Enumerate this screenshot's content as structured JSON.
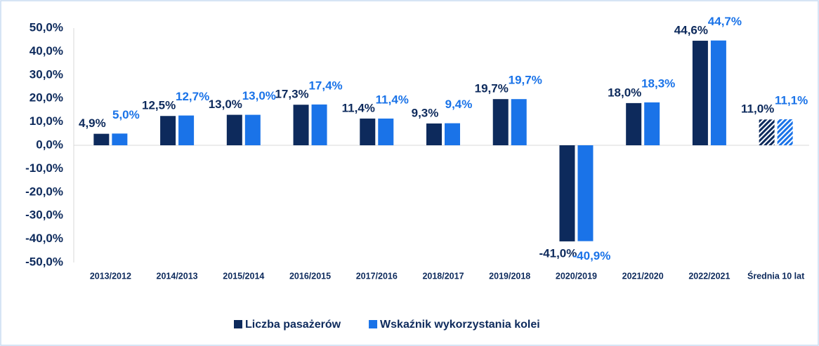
{
  "chart_data": {
    "type": "bar",
    "categories": [
      "2013/2012",
      "2014/2013",
      "2015/2014",
      "2016/2015",
      "2017/2016",
      "2018/2017",
      "2019/2018",
      "2020/2019",
      "2021/2020",
      "2022/2021",
      "Średnia 10 lat"
    ],
    "series": [
      {
        "name": "Liczba pasażerów",
        "color": "#0d2a5c",
        "values": [
          4.9,
          12.5,
          13.0,
          17.3,
          11.4,
          9.3,
          19.7,
          -41.0,
          18.0,
          44.6,
          11.0
        ],
        "value_labels": [
          "4,9%",
          "12,5%",
          "13,0%",
          "17,3%",
          "11,4%",
          "9,3%",
          "19,7%",
          "-41,0%",
          "18,0%",
          "44,6%",
          "11,0%"
        ]
      },
      {
        "name": "Wskaźnik wykorzystania kolei",
        "color": "#1a73e8",
        "values": [
          5.0,
          12.7,
          13.0,
          17.4,
          11.4,
          9.4,
          19.7,
          -40.9,
          18.3,
          44.7,
          11.1
        ],
        "value_labels": [
          "5,0%",
          "12,7%",
          "13,0%",
          "17,4%",
          "11,4%",
          "9,4%",
          "19,7%",
          "-40,9%",
          "18,3%",
          "44,7%",
          "11,1%"
        ]
      }
    ],
    "hatched": [
      false,
      false,
      false,
      false,
      false,
      false,
      false,
      false,
      false,
      false,
      true
    ],
    "ylim": [
      -50,
      50
    ],
    "yticks": [
      {
        "value": -50,
        "label": "-50,0%"
      },
      {
        "value": -40,
        "label": "-40,0%"
      },
      {
        "value": -30,
        "label": "-30,0%"
      },
      {
        "value": -20,
        "label": "-20,0%"
      },
      {
        "value": -10,
        "label": "-10,0%"
      },
      {
        "value": 0,
        "label": "0,0%"
      },
      {
        "value": 10,
        "label": "10,0%"
      },
      {
        "value": 20,
        "label": "20,0%"
      },
      {
        "value": 30,
        "label": "30,0%"
      },
      {
        "value": 40,
        "label": "40,0%"
      },
      {
        "value": 50,
        "label": "50,0%"
      }
    ],
    "grid": false,
    "legend": "bottom"
  }
}
